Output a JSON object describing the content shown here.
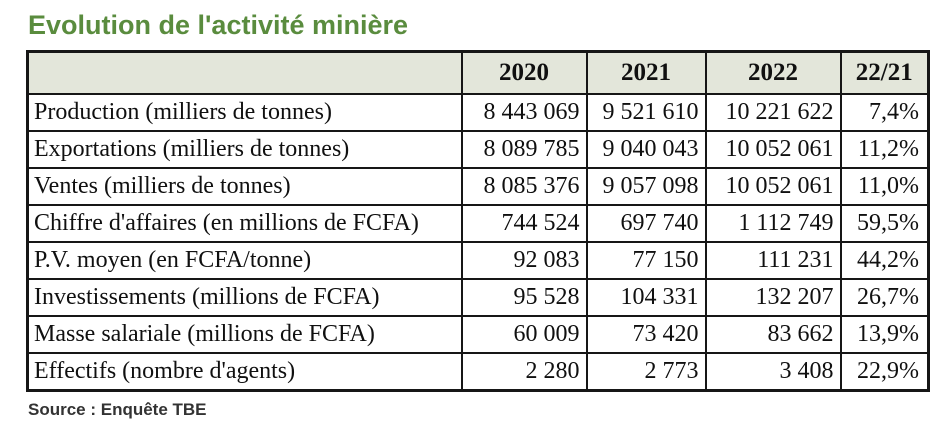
{
  "title": "Evolution de l'activité minière",
  "source": "Source : Enquête TBE",
  "colors": {
    "title_green": "#5a8c3e",
    "header_background": "#e3e6da",
    "border_black": "#161616",
    "source_gray": "#333333"
  },
  "table": {
    "columns": [
      "",
      "2020",
      "2021",
      "2022",
      "22/21"
    ],
    "rows": [
      [
        "Production (milliers de tonnes)",
        "8 443 069",
        "9 521 610",
        "10 221 622",
        "7,4%"
      ],
      [
        "Exportations (milliers de tonnes)",
        "8 089 785",
        "9 040 043",
        "10 052 061",
        "11,2%"
      ],
      [
        "Ventes (milliers de tonnes)",
        "8 085 376",
        "9 057 098",
        "10 052 061",
        "11,0%"
      ],
      [
        "Chiffre d'affaires (en millions de FCFA)",
        "744 524",
        "697 740",
        "1 112 749",
        "59,5%"
      ],
      [
        "P.V. moyen (en FCFA/tonne)",
        "92 083",
        "77 150",
        "111 231",
        "44,2%"
      ],
      [
        "Investissements (millions de FCFA)",
        "95 528",
        "104 331",
        "132 207",
        "26,7%"
      ],
      [
        "Masse salariale (millions de FCFA)",
        "60 009",
        "73 420",
        "83 662",
        "13,9%"
      ],
      [
        "Effectifs (nombre d'agents)",
        "2 280",
        "2 773",
        "3 408",
        "22,9%"
      ]
    ]
  }
}
